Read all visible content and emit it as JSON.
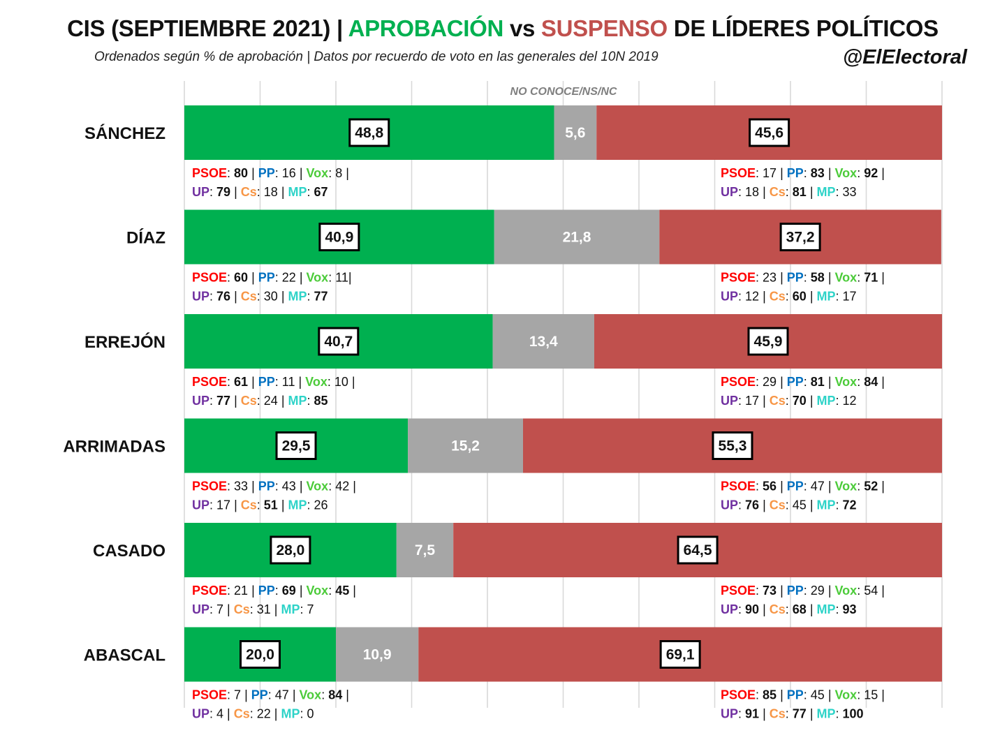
{
  "header": {
    "title_pre": "CIS (SEPTIEMBRE 2021) | ",
    "title_approval": "APROBACIÓN",
    "title_vs": " vs ",
    "title_fail": "SUSPENSO",
    "title_post": " DE LÍDERES POLÍTICOS",
    "subtitle": "Ordenados según % de aprobación | Datos por recuerdo de voto en las generales del 10N 2019",
    "handle": "@ElElectoral"
  },
  "colors": {
    "approval": "#00b050",
    "unknown": "#a6a6a6",
    "fail": "#c0504d",
    "title_approval": "#00b050",
    "title_fail": "#c0504d",
    "PSOE": "#ff0000",
    "PP": "#0070c0",
    "Vox": "#4ccb3a",
    "UP": "#7030a0",
    "Cs": "#f79646",
    "MP": "#2ed3c8"
  },
  "chart_data": {
    "type": "bar",
    "stacked": true,
    "orientation": "horizontal",
    "xlim": [
      0,
      100
    ],
    "grid": true,
    "annotation": "NO CONOCE/NS/NC",
    "categories": [
      "SÁNCHEZ",
      "DÍAZ",
      "ERREJÓN",
      "ARRIMADAS",
      "CASADO",
      "ABASCAL"
    ],
    "series": [
      {
        "key": "approval",
        "values": [
          48.8,
          40.9,
          40.7,
          29.5,
          28.0,
          20.0
        ],
        "labels": [
          "48,8",
          "40,9",
          "40,7",
          "29,5",
          "28,0",
          "20,0"
        ]
      },
      {
        "key": "unknown",
        "values": [
          5.6,
          21.8,
          13.4,
          15.2,
          7.5,
          10.9
        ],
        "labels": [
          "5,6",
          "21,8",
          "13,4",
          "15,2",
          "7,5",
          "10,9"
        ]
      },
      {
        "key": "fail",
        "values": [
          45.6,
          37.2,
          45.9,
          55.3,
          64.5,
          69.1
        ],
        "labels": [
          "45,6",
          "37,2",
          "45,9",
          "55,3",
          "64,5",
          "69,1"
        ]
      }
    ],
    "party_breakdown": [
      {
        "approval": [
          [
            {
              "p": "PSOE",
              "v": "80",
              "b": true,
              "sep": " |"
            },
            {
              "p": "PP",
              "v": "16",
              "b": false,
              "sep": " |"
            },
            {
              "p": "Vox",
              "v": "8",
              "b": false,
              "sep": " |"
            }
          ],
          [
            {
              "p": "UP",
              "v": "79",
              "b": true,
              "sep": " |"
            },
            {
              "p": "Cs",
              "v": "18",
              "b": false,
              "sep": " |"
            },
            {
              "p": "MP",
              "v": "67",
              "b": true,
              "sep": ""
            }
          ]
        ],
        "fail": [
          [
            {
              "p": "PSOE",
              "v": "17",
              "b": false,
              "sep": " |"
            },
            {
              "p": "PP",
              "v": "83",
              "b": true,
              "sep": " |"
            },
            {
              "p": "Vox",
              "v": "92",
              "b": true,
              "sep": " |"
            }
          ],
          [
            {
              "p": "UP",
              "v": "18",
              "b": false,
              "sep": " |"
            },
            {
              "p": "Cs",
              "v": "81",
              "b": true,
              "sep": " |"
            },
            {
              "p": "MP",
              "v": "33",
              "b": false,
              "sep": ""
            }
          ]
        ]
      },
      {
        "approval": [
          [
            {
              "p": "PSOE",
              "v": "60",
              "b": true,
              "sep": " |"
            },
            {
              "p": "PP",
              "v": "22",
              "b": false,
              "sep": " |"
            },
            {
              "p": "Vox",
              "v": "11",
              "b": false,
              "sep": "|"
            }
          ],
          [
            {
              "p": "UP",
              "v": "76",
              "b": true,
              "sep": " |"
            },
            {
              "p": "Cs",
              "v": "30",
              "b": false,
              "sep": " |"
            },
            {
              "p": "MP",
              "v": "77",
              "b": true,
              "sep": ""
            }
          ]
        ],
        "fail": [
          [
            {
              "p": "PSOE",
              "v": "23",
              "b": false,
              "sep": " |"
            },
            {
              "p": "PP",
              "v": "58",
              "b": true,
              "sep": " |"
            },
            {
              "p": "Vox",
              "v": "71",
              "b": true,
              "sep": " |"
            }
          ],
          [
            {
              "p": "UP",
              "v": "12",
              "b": false,
              "sep": " |"
            },
            {
              "p": "Cs",
              "v": "60",
              "b": true,
              "sep": " |"
            },
            {
              "p": "MP",
              "v": "17",
              "b": false,
              "sep": ""
            }
          ]
        ]
      },
      {
        "approval": [
          [
            {
              "p": "PSOE",
              "v": "61",
              "b": true,
              "sep": " |"
            },
            {
              "p": "PP",
              "v": "11",
              "b": false,
              "sep": " |"
            },
            {
              "p": "Vox",
              "v": "10",
              "b": false,
              "sep": " |"
            }
          ],
          [
            {
              "p": "UP",
              "v": "77",
              "b": true,
              "sep": " |"
            },
            {
              "p": "Cs",
              "v": "24",
              "b": false,
              "sep": " |"
            },
            {
              "p": "MP",
              "v": "85",
              "b": true,
              "sep": ""
            }
          ]
        ],
        "fail": [
          [
            {
              "p": "PSOE",
              "v": "29",
              "b": false,
              "sep": " |"
            },
            {
              "p": "PP",
              "v": "81",
              "b": true,
              "sep": " |"
            },
            {
              "p": "Vox",
              "v": "84",
              "b": true,
              "sep": " |"
            }
          ],
          [
            {
              "p": "UP",
              "v": "17",
              "b": false,
              "sep": " |"
            },
            {
              "p": "Cs",
              "v": "70",
              "b": true,
              "sep": " |"
            },
            {
              "p": "MP",
              "v": "12",
              "b": false,
              "sep": ""
            }
          ]
        ]
      },
      {
        "approval": [
          [
            {
              "p": "PSOE",
              "v": "33",
              "b": false,
              "sep": " |"
            },
            {
              "p": "PP",
              "v": "43",
              "b": false,
              "sep": " |"
            },
            {
              "p": "Vox",
              "v": "42",
              "b": false,
              "sep": " |"
            }
          ],
          [
            {
              "p": "UP",
              "v": "17",
              "b": false,
              "sep": " |"
            },
            {
              "p": "Cs",
              "v": "51",
              "b": true,
              "sep": " |"
            },
            {
              "p": "MP",
              "v": "26",
              "b": false,
              "sep": ""
            }
          ]
        ],
        "fail": [
          [
            {
              "p": "PSOE",
              "v": "56",
              "b": true,
              "sep": " |"
            },
            {
              "p": "PP",
              "v": "47",
              "b": false,
              "sep": " |"
            },
            {
              "p": "Vox",
              "v": "52",
              "b": true,
              "sep": " |"
            }
          ],
          [
            {
              "p": "UP",
              "v": "76",
              "b": true,
              "sep": " |"
            },
            {
              "p": "Cs",
              "v": "45",
              "b": false,
              "sep": " |"
            },
            {
              "p": "MP",
              "v": "72",
              "b": true,
              "sep": ""
            }
          ]
        ]
      },
      {
        "approval": [
          [
            {
              "p": "PSOE",
              "v": "21",
              "b": false,
              "sep": " |"
            },
            {
              "p": "PP",
              "v": "69",
              "b": true,
              "sep": " |"
            },
            {
              "p": "Vox",
              "v": "45",
              "b": true,
              "sep": " |"
            }
          ],
          [
            {
              "p": "UP",
              "v": "7",
              "b": false,
              "sep": " |"
            },
            {
              "p": "Cs",
              "v": "31",
              "b": false,
              "sep": " |"
            },
            {
              "p": "MP",
              "v": "7",
              "b": false,
              "sep": ""
            }
          ]
        ],
        "fail": [
          [
            {
              "p": "PSOE",
              "v": "73",
              "b": true,
              "sep": " |"
            },
            {
              "p": "PP",
              "v": "29",
              "b": false,
              "sep": " |"
            },
            {
              "p": "Vox",
              "v": "54",
              "b": false,
              "sep": " |"
            }
          ],
          [
            {
              "p": "UP",
              "v": "90",
              "b": true,
              "sep": " |"
            },
            {
              "p": "Cs",
              "v": "68",
              "b": true,
              "sep": " |"
            },
            {
              "p": "MP",
              "v": "93",
              "b": true,
              "sep": ""
            }
          ]
        ]
      },
      {
        "approval": [
          [
            {
              "p": "PSOE",
              "v": "7",
              "b": false,
              "sep": " |"
            },
            {
              "p": "PP",
              "v": "47",
              "b": false,
              "sep": " |"
            },
            {
              "p": "Vox",
              "v": "84",
              "b": true,
              "sep": " |"
            }
          ],
          [
            {
              "p": "UP",
              "v": "4",
              "b": false,
              "sep": " |"
            },
            {
              "p": "Cs",
              "v": "22",
              "b": false,
              "sep": " |"
            },
            {
              "p": "MP",
              "v": "0",
              "b": false,
              "sep": ""
            }
          ]
        ],
        "fail": [
          [
            {
              "p": "PSOE",
              "v": "85",
              "b": true,
              "sep": " |"
            },
            {
              "p": "PP",
              "v": "45",
              "b": false,
              "sep": " |"
            },
            {
              "p": "Vox",
              "v": "15",
              "b": false,
              "sep": " |"
            }
          ],
          [
            {
              "p": "UP",
              "v": "91",
              "b": true,
              "sep": " |"
            },
            {
              "p": "Cs",
              "v": "77",
              "b": true,
              "sep": " |"
            },
            {
              "p": "MP",
              "v": "100",
              "b": true,
              "sep": ""
            }
          ]
        ]
      }
    ]
  }
}
